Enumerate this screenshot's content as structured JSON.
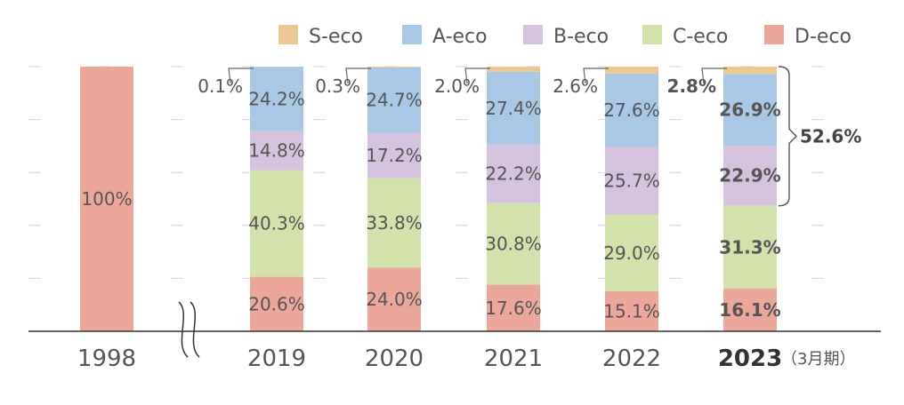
{
  "chart_data": {
    "type": "bar",
    "stacked": true,
    "percent_axis": true,
    "ylim": [
      0,
      100
    ],
    "categories": [
      "1998",
      "2019",
      "2020",
      "2021",
      "2022",
      "2023"
    ],
    "highlight_category": "2023",
    "period_note": "（3月期）",
    "legend": [
      {
        "name": "S-eco",
        "color": "#EBC792"
      },
      {
        "name": "A-eco",
        "color": "#A9C8E6"
      },
      {
        "name": "B-eco",
        "color": "#D4C2DE"
      },
      {
        "name": "C-eco",
        "color": "#D3E1AB"
      },
      {
        "name": "D-eco",
        "color": "#EBA79A"
      }
    ],
    "series": [
      {
        "name": "D-eco",
        "color": "#EBA79A",
        "values": [
          100,
          20.6,
          24.0,
          17.6,
          15.1,
          16.1
        ]
      },
      {
        "name": "C-eco",
        "color": "#D3E1AB",
        "values": [
          0,
          40.3,
          33.8,
          30.8,
          29.0,
          31.3
        ]
      },
      {
        "name": "B-eco",
        "color": "#D4C2DE",
        "values": [
          0,
          14.8,
          17.2,
          22.2,
          25.7,
          22.9
        ]
      },
      {
        "name": "A-eco",
        "color": "#A9C8E6",
        "values": [
          0,
          24.2,
          24.7,
          27.4,
          27.6,
          26.9
        ]
      },
      {
        "name": "S-eco",
        "color": "#EBC792",
        "values": [
          0,
          0.1,
          0.3,
          2.0,
          2.6,
          2.8
        ]
      }
    ],
    "data_labels": [
      {
        "D-eco": "100%"
      },
      {
        "D-eco": "20.6%",
        "C-eco": "40.3%",
        "B-eco": "14.8%",
        "A-eco": "24.2%",
        "S-eco": "0.1%"
      },
      {
        "D-eco": "24.0%",
        "C-eco": "33.8%",
        "B-eco": "17.2%",
        "A-eco": "24.7%",
        "S-eco": "0.3%"
      },
      {
        "D-eco": "17.6%",
        "C-eco": "30.8%",
        "B-eco": "22.2%",
        "A-eco": "27.4%",
        "S-eco": "2.0%"
      },
      {
        "D-eco": "15.1%",
        "C-eco": "29.0%",
        "B-eco": "25.7%",
        "A-eco": "27.6%",
        "S-eco": "2.6%"
      },
      {
        "D-eco": "16.1%",
        "C-eco": "31.3%",
        "B-eco": "22.9%",
        "A-eco": "26.9%",
        "S-eco": "2.8%"
      }
    ],
    "annotation": {
      "category": "2023",
      "text": "52.6%",
      "spans": [
        "S-eco",
        "A-eco",
        "B-eco"
      ]
    },
    "axis_break": "between 1998 and 2019",
    "grid": true,
    "legend_placement": "top-right"
  }
}
